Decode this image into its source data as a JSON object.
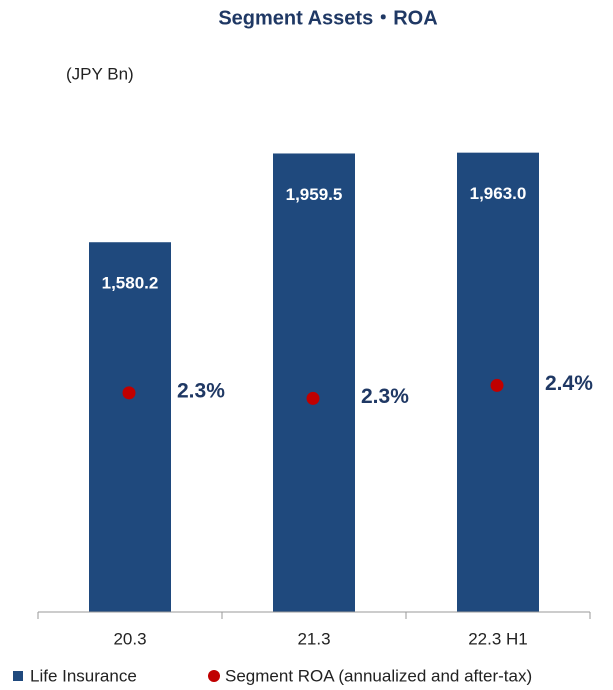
{
  "chart_data": {
    "type": "bar",
    "title": "Segment Assets・ROA",
    "unit_label": "(JPY Bn)",
    "categories": [
      "20.3",
      "21.3",
      "22.3 H1"
    ],
    "ylim": [
      0,
      2000
    ],
    "y2lim": [
      1.14,
      3.66
    ],
    "series": [
      {
        "name": "Life Insurance",
        "color": "#1f497d",
        "values": [
          1580.2,
          1959.5,
          1963.0
        ],
        "value_labels": [
          "1,580.2",
          "1,959.5",
          "1,963.0"
        ]
      },
      {
        "name": "Segment ROA (annualized and after-tax)",
        "color": "#c00000",
        "axis": "y2",
        "type": "scatter",
        "values": [
          2.32,
          2.29,
          2.36
        ],
        "value_labels": [
          "2.3%",
          "2.3%",
          "2.4%"
        ]
      }
    ]
  }
}
